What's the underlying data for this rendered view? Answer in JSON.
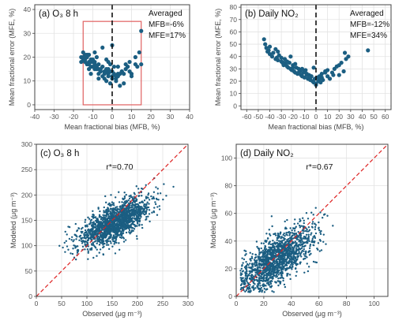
{
  "colors": {
    "point": "#1b5e82",
    "frame": "#444444",
    "grid": "#e3e3e3",
    "zero_line": "#111111",
    "highlight_box": "#e06060",
    "reference_line": "#dd2222",
    "axis_text": "#555555",
    "title_text": "#111111"
  },
  "chart_data": [
    {
      "type": "scatter",
      "panel_label": "(a)",
      "title": "O₃ 8 h",
      "xlabel": "Mean fractional bias (MFB, %)",
      "ylabel": "Mean fractional error (MFE, %)",
      "xlim": [
        -40,
        40
      ],
      "ylim": [
        -2,
        42
      ],
      "xticks": [
        -40,
        -30,
        -20,
        -10,
        0,
        10,
        20,
        30,
        40
      ],
      "yticks": [
        0,
        10,
        20,
        30,
        40
      ],
      "grid": true,
      "zero_line": "dashed vertical at x=0",
      "highlight_box": {
        "x": [
          -15,
          15
        ],
        "y": [
          0,
          35
        ]
      },
      "annotation": [
        "Averaged",
        "MFB=-6%",
        "MFE=17%"
      ],
      "x": [
        -16,
        -15,
        -14,
        -13,
        -12,
        -11,
        -10,
        -9,
        -8,
        -7,
        -6,
        -5,
        -4,
        -3,
        -2,
        -1,
        0,
        1,
        2,
        3,
        4,
        5,
        6,
        7,
        8,
        9,
        10,
        12,
        13,
        15,
        -15,
        -13,
        -11,
        -9,
        -7,
        -5,
        -3,
        -1,
        1,
        3,
        -14,
        -12,
        -10,
        -8,
        -6,
        -4,
        -2,
        0,
        2,
        5,
        -13,
        -11,
        -9,
        -7,
        -5,
        -3,
        -14,
        -10,
        -6,
        -2,
        2,
        6,
        10,
        -12,
        -8,
        -4,
        0,
        -15,
        -9,
        -3,
        3,
        9,
        14,
        -11,
        -7,
        -1,
        4,
        -16,
        -5,
        7,
        -12,
        -2,
        12,
        0,
        8,
        15,
        -1
      ],
      "y": [
        20,
        19,
        18,
        21,
        17,
        16,
        19,
        18,
        20,
        17,
        15,
        16,
        14,
        15,
        13,
        14,
        12,
        13,
        11,
        12,
        13,
        14,
        13,
        15,
        16,
        14,
        13,
        17,
        16,
        31,
        22,
        20,
        18,
        17,
        15,
        16,
        14,
        17,
        16,
        13,
        19,
        21,
        18,
        16,
        14,
        13,
        15,
        11,
        12,
        14,
        17,
        19,
        15,
        13,
        12,
        10,
        21,
        16,
        14,
        12,
        10,
        9,
        12,
        18,
        15,
        11,
        14,
        20,
        22,
        19,
        16,
        18,
        22,
        13,
        11,
        9,
        8,
        18,
        24,
        17,
        15,
        18,
        20,
        25,
        16,
        17,
        14
      ]
    },
    {
      "type": "scatter",
      "panel_label": "(b)",
      "title": "Daily NO₂",
      "xlabel": "Mean fractional bias (MFB, %)",
      "ylabel": "Mean fractional error (MFE, %)",
      "xlim": [
        -65,
        65
      ],
      "ylim": [
        -3,
        82
      ],
      "xticks": [
        -60,
        -50,
        -40,
        -30,
        -20,
        -10,
        0,
        10,
        20,
        30,
        40,
        50,
        60
      ],
      "yticks": [
        0,
        10,
        20,
        30,
        40,
        50,
        60,
        70,
        80
      ],
      "grid": true,
      "zero_line": "dashed vertical at x=0",
      "annotation": [
        "Averaged",
        "MFB=-12%",
        "MFE=34%"
      ],
      "x": [
        -45,
        -44,
        -43,
        -42,
        -41,
        -40,
        -38,
        -37,
        -35,
        -34,
        -33,
        -32,
        -30,
        -29,
        -28,
        -27,
        -26,
        -25,
        -24,
        -23,
        -22,
        -21,
        -20,
        -19,
        -18,
        -17,
        -16,
        -15,
        -14,
        -13,
        -12,
        -11,
        -10,
        -9,
        -8,
        -7,
        -6,
        -5,
        -4,
        -3,
        -2,
        -1,
        0,
        1,
        2,
        3,
        4,
        5,
        6,
        8,
        10,
        12,
        14,
        16,
        18,
        20,
        22,
        24,
        26,
        28,
        -40,
        -35,
        -30,
        -25,
        -20,
        -15,
        -10,
        -5,
        0,
        5,
        10,
        15,
        20,
        25,
        -33,
        -28,
        -22,
        -18,
        -12,
        -8,
        -2,
        3,
        8,
        45
      ],
      "y": [
        54,
        50,
        47,
        44,
        45,
        42,
        40,
        43,
        38,
        39,
        37,
        41,
        36,
        35,
        33,
        38,
        34,
        32,
        31,
        35,
        30,
        29,
        33,
        28,
        27,
        31,
        26,
        30,
        28,
        25,
        24,
        27,
        23,
        29,
        26,
        22,
        25,
        21,
        24,
        20,
        19,
        22,
        18,
        23,
        20,
        24,
        19,
        26,
        21,
        28,
        24,
        22,
        27,
        30,
        32,
        25,
        35,
        28,
        38,
        40,
        48,
        46,
        39,
        36,
        31,
        27,
        28,
        22,
        17,
        23,
        29,
        25,
        33,
        43,
        44,
        35,
        40,
        34,
        30,
        25,
        31,
        22,
        27,
        45
      ]
    },
    {
      "type": "scatter",
      "panel_label": "(c)",
      "title": "O₃ 8 h",
      "xlabel": "Observed (μg m⁻³)",
      "ylabel": "Modeled (μg m⁻³)",
      "xlim": [
        0,
        300
      ],
      "ylim": [
        0,
        300
      ],
      "xticks": [
        0,
        50,
        100,
        150,
        200,
        250,
        300
      ],
      "yticks": [
        0,
        50,
        100,
        150,
        200,
        250,
        300
      ],
      "grid": true,
      "reference_line": "1:1 dashed",
      "annotation": [
        "r*=0.70"
      ],
      "point_cloud": {
        "count": 1600,
        "center": [
          155,
          145
        ],
        "spread": [
          35,
          25
        ],
        "correlation": 0.7
      }
    },
    {
      "type": "scatter",
      "panel_label": "(d)",
      "title": "Daily NO₂",
      "xlabel": "Observed (μg m⁻³)",
      "ylabel": "Modeled (μg m⁻³)",
      "xlim": [
        0,
        110
      ],
      "ylim": [
        0,
        110
      ],
      "xticks": [
        0,
        20,
        40,
        60,
        80,
        100
      ],
      "yticks": [
        0,
        20,
        40,
        60,
        80,
        100
      ],
      "grid": true,
      "reference_line": "1:1 dashed",
      "annotation": [
        "r*=0.67"
      ],
      "point_cloud": {
        "count": 1500,
        "center": [
          28,
          26
        ],
        "spread": [
          14,
          12
        ],
        "correlation": 0.67
      }
    }
  ]
}
